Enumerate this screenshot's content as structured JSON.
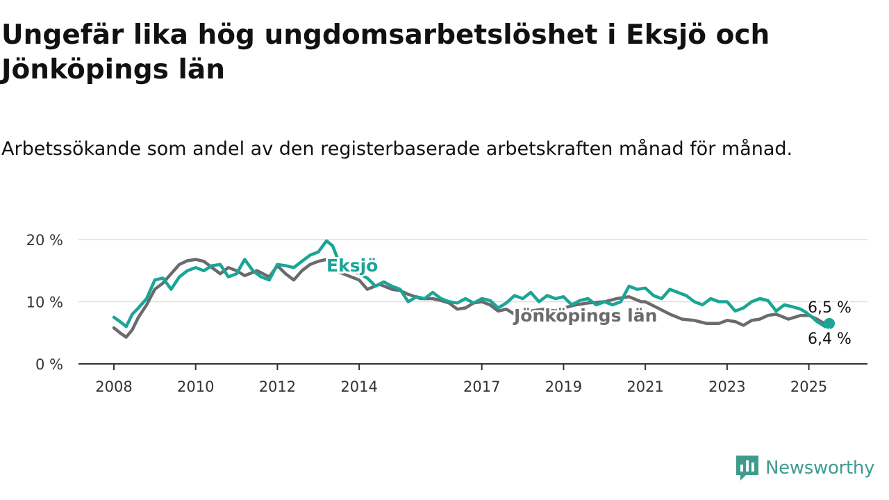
{
  "title": "Ungefär lika hög ungdomsarbetslöshet i Eksjö och Jönköpings län",
  "subtitle": "Arbetssökande som andel av den registerbaserade arbetskraften månad för månad.",
  "brand": {
    "name": "Newsworthy",
    "icon": "newsworthy-logo-icon",
    "color": "#3f9b8e"
  },
  "chart_data": {
    "type": "line",
    "x_ticks": [
      "2008",
      "2010",
      "2012",
      "2014",
      "2017",
      "2019",
      "2021",
      "2023",
      "2025"
    ],
    "y_ticks": [
      "0 %",
      "10 %",
      "20 %"
    ],
    "ylim": [
      0,
      20
    ],
    "grid": true,
    "series": [
      {
        "name": "Jönköpings län",
        "color": "#6b6a6c",
        "end_label": "6,4 %",
        "points": [
          [
            2008.0,
            5.8
          ],
          [
            2008.15,
            5.0
          ],
          [
            2008.3,
            4.3
          ],
          [
            2008.45,
            5.5
          ],
          [
            2008.6,
            7.5
          ],
          [
            2008.8,
            9.5
          ],
          [
            2009.0,
            12.0
          ],
          [
            2009.2,
            13.0
          ],
          [
            2009.4,
            14.5
          ],
          [
            2009.6,
            16.0
          ],
          [
            2009.8,
            16.6
          ],
          [
            2010.0,
            16.8
          ],
          [
            2010.2,
            16.5
          ],
          [
            2010.4,
            15.5
          ],
          [
            2010.6,
            14.5
          ],
          [
            2010.8,
            15.5
          ],
          [
            2011.0,
            15.0
          ],
          [
            2011.2,
            14.2
          ],
          [
            2011.5,
            15.0
          ],
          [
            2011.8,
            14.0
          ],
          [
            2012.0,
            15.8
          ],
          [
            2012.2,
            14.5
          ],
          [
            2012.4,
            13.5
          ],
          [
            2012.6,
            15.0
          ],
          [
            2012.8,
            16.0
          ],
          [
            2013.0,
            16.5
          ],
          [
            2013.2,
            16.8
          ],
          [
            2013.5,
            14.8
          ],
          [
            2013.8,
            14.0
          ],
          [
            2014.0,
            13.5
          ],
          [
            2014.2,
            12.0
          ],
          [
            2014.5,
            12.8
          ],
          [
            2014.8,
            12.0
          ],
          [
            2015.0,
            11.8
          ],
          [
            2015.2,
            11.2
          ],
          [
            2015.5,
            10.5
          ],
          [
            2015.8,
            10.5
          ],
          [
            2016.0,
            10.2
          ],
          [
            2016.2,
            9.8
          ],
          [
            2016.4,
            8.8
          ],
          [
            2016.6,
            9.0
          ],
          [
            2016.8,
            9.8
          ],
          [
            2017.0,
            10.0
          ],
          [
            2017.2,
            9.5
          ],
          [
            2017.4,
            8.5
          ],
          [
            2017.6,
            8.8
          ],
          [
            2017.8,
            8.0
          ],
          [
            2018.0,
            8.2
          ],
          [
            2018.2,
            8.5
          ],
          [
            2018.5,
            8.8
          ],
          [
            2018.8,
            8.5
          ],
          [
            2019.0,
            9.0
          ],
          [
            2019.3,
            9.5
          ],
          [
            2019.6,
            9.8
          ],
          [
            2020.0,
            10.0
          ],
          [
            2020.3,
            10.5
          ],
          [
            2020.6,
            10.8
          ],
          [
            2020.9,
            10.0
          ],
          [
            2021.0,
            10.0
          ],
          [
            2021.3,
            9.0
          ],
          [
            2021.6,
            8.0
          ],
          [
            2021.9,
            7.2
          ],
          [
            2022.2,
            7.0
          ],
          [
            2022.5,
            6.5
          ],
          [
            2022.8,
            6.5
          ],
          [
            2023.0,
            7.0
          ],
          [
            2023.2,
            6.8
          ],
          [
            2023.4,
            6.2
          ],
          [
            2023.6,
            7.0
          ],
          [
            2023.8,
            7.2
          ],
          [
            2024.0,
            7.8
          ],
          [
            2024.2,
            8.0
          ],
          [
            2024.5,
            7.2
          ],
          [
            2024.8,
            7.8
          ],
          [
            2025.0,
            7.8
          ],
          [
            2025.2,
            7.2
          ],
          [
            2025.4,
            6.4
          ],
          [
            2025.5,
            6.4
          ]
        ]
      },
      {
        "name": "Eksjö",
        "color": "#1aa596",
        "end_label": "6,5 %",
        "points": [
          [
            2008.0,
            7.5
          ],
          [
            2008.15,
            6.8
          ],
          [
            2008.3,
            6.0
          ],
          [
            2008.45,
            8.0
          ],
          [
            2008.6,
            9.0
          ],
          [
            2008.8,
            10.5
          ],
          [
            2009.0,
            13.5
          ],
          [
            2009.2,
            13.8
          ],
          [
            2009.4,
            12.0
          ],
          [
            2009.6,
            14.0
          ],
          [
            2009.8,
            15.0
          ],
          [
            2010.0,
            15.5
          ],
          [
            2010.2,
            15.0
          ],
          [
            2010.4,
            15.8
          ],
          [
            2010.6,
            16.0
          ],
          [
            2010.8,
            14.0
          ],
          [
            2011.0,
            14.5
          ],
          [
            2011.2,
            16.8
          ],
          [
            2011.4,
            15.0
          ],
          [
            2011.6,
            14.0
          ],
          [
            2011.8,
            13.5
          ],
          [
            2012.0,
            16.0
          ],
          [
            2012.2,
            15.8
          ],
          [
            2012.4,
            15.5
          ],
          [
            2012.6,
            16.5
          ],
          [
            2012.8,
            17.5
          ],
          [
            2013.0,
            18.0
          ],
          [
            2013.2,
            19.8
          ],
          [
            2013.35,
            19.0
          ],
          [
            2013.5,
            16.5
          ],
          [
            2013.8,
            15.0
          ],
          [
            2014.0,
            14.5
          ],
          [
            2014.2,
            13.8
          ],
          [
            2014.4,
            12.5
          ],
          [
            2014.6,
            13.2
          ],
          [
            2014.8,
            12.5
          ],
          [
            2015.0,
            12.0
          ],
          [
            2015.2,
            10.0
          ],
          [
            2015.4,
            10.8
          ],
          [
            2015.6,
            10.5
          ],
          [
            2015.8,
            11.5
          ],
          [
            2016.0,
            10.5
          ],
          [
            2016.2,
            10.0
          ],
          [
            2016.4,
            9.8
          ],
          [
            2016.6,
            10.5
          ],
          [
            2016.8,
            9.8
          ],
          [
            2017.0,
            10.5
          ],
          [
            2017.2,
            10.2
          ],
          [
            2017.4,
            9.0
          ],
          [
            2017.6,
            9.8
          ],
          [
            2017.8,
            11.0
          ],
          [
            2018.0,
            10.5
          ],
          [
            2018.2,
            11.5
          ],
          [
            2018.4,
            10.0
          ],
          [
            2018.6,
            11.0
          ],
          [
            2018.8,
            10.5
          ],
          [
            2019.0,
            10.8
          ],
          [
            2019.2,
            9.5
          ],
          [
            2019.4,
            10.2
          ],
          [
            2019.6,
            10.5
          ],
          [
            2019.8,
            9.5
          ],
          [
            2020.0,
            10.0
          ],
          [
            2020.2,
            9.5
          ],
          [
            2020.4,
            10.0
          ],
          [
            2020.6,
            12.5
          ],
          [
            2020.8,
            12.0
          ],
          [
            2021.0,
            12.2
          ],
          [
            2021.2,
            11.0
          ],
          [
            2021.4,
            10.5
          ],
          [
            2021.6,
            12.0
          ],
          [
            2021.8,
            11.5
          ],
          [
            2022.0,
            11.0
          ],
          [
            2022.2,
            10.0
          ],
          [
            2022.4,
            9.5
          ],
          [
            2022.6,
            10.5
          ],
          [
            2022.8,
            10.0
          ],
          [
            2023.0,
            10.0
          ],
          [
            2023.2,
            8.5
          ],
          [
            2023.4,
            9.0
          ],
          [
            2023.6,
            10.0
          ],
          [
            2023.8,
            10.5
          ],
          [
            2024.0,
            10.2
          ],
          [
            2024.2,
            8.5
          ],
          [
            2024.4,
            9.5
          ],
          [
            2024.6,
            9.2
          ],
          [
            2024.8,
            8.8
          ],
          [
            2025.0,
            8.0
          ],
          [
            2025.2,
            6.8
          ],
          [
            2025.4,
            6.0
          ],
          [
            2025.5,
            6.5
          ]
        ]
      }
    ]
  }
}
